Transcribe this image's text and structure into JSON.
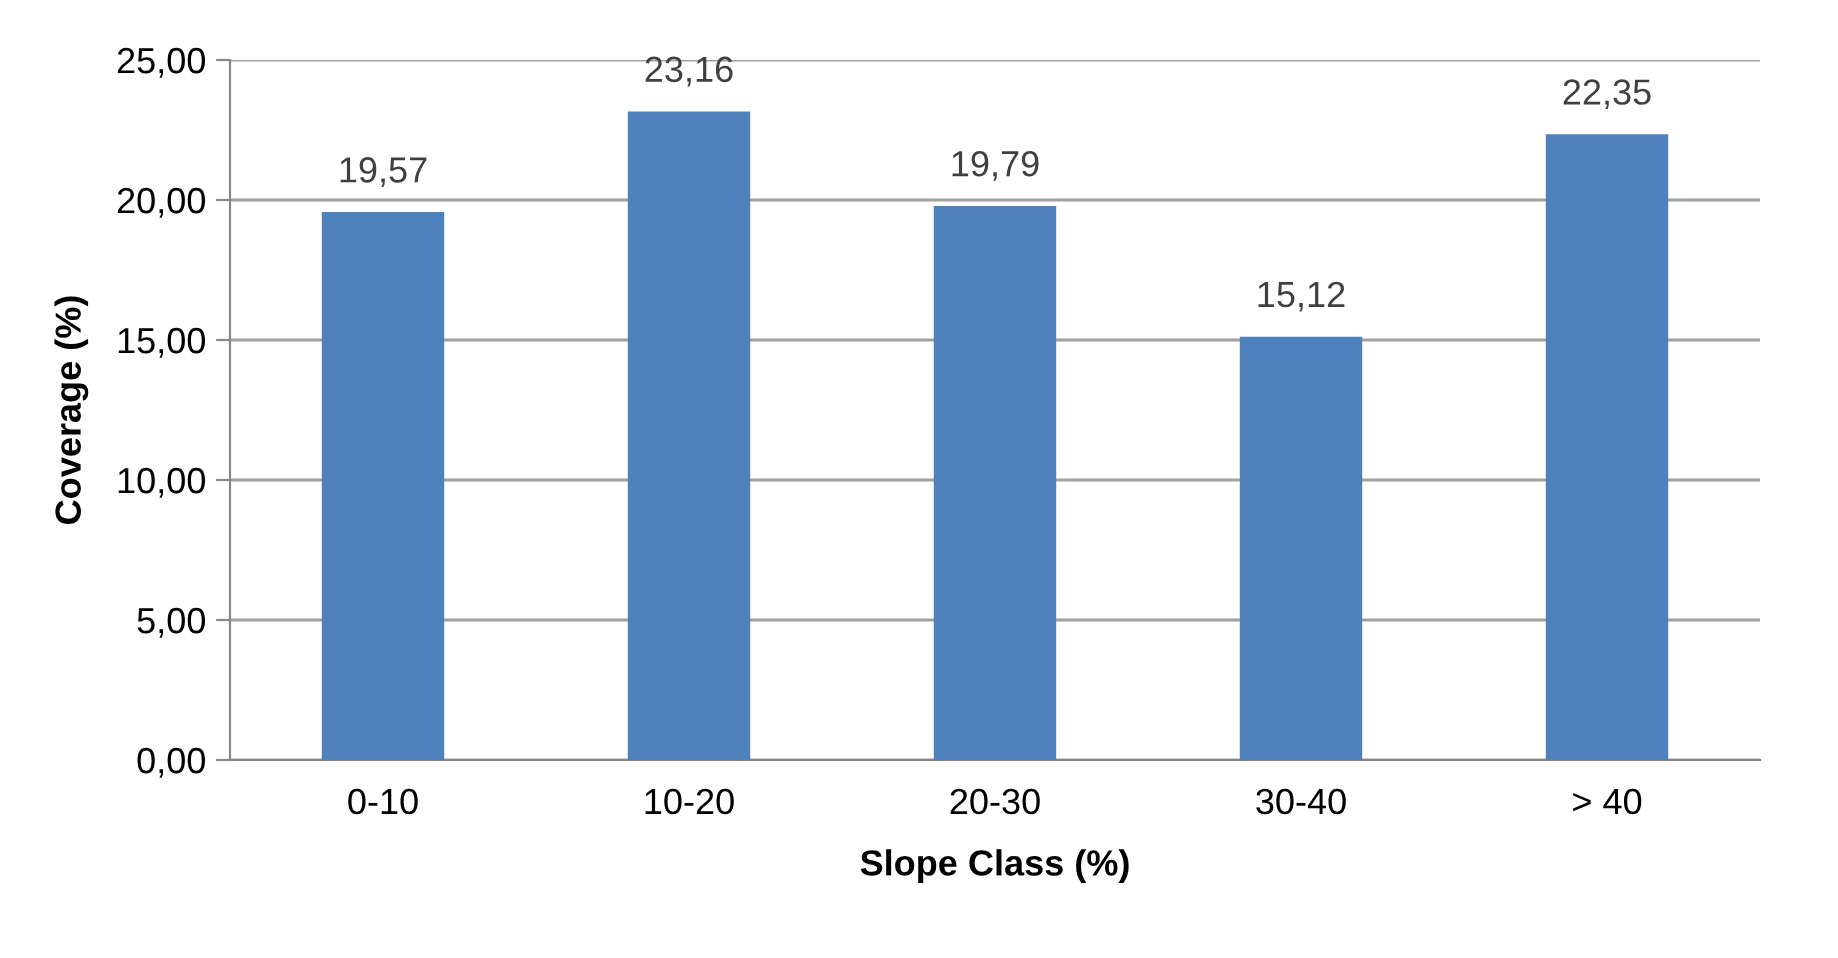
{
  "chart_data": {
    "type": "bar",
    "xlabel": "Slope Class (%)",
    "ylabel": "Coverage (%)",
    "categories": [
      "0-10",
      "10-20",
      "20-30",
      "30-40",
      "> 40"
    ],
    "values": [
      19.57,
      23.16,
      19.79,
      15.12,
      22.35
    ],
    "value_labels": [
      "19,57",
      "23,16",
      "19,79",
      "15,12",
      "22,35"
    ],
    "color": "#4f81bd",
    "ylim": [
      0,
      25
    ],
    "yticks": [
      {
        "value": 0,
        "label": "0,00"
      },
      {
        "value": 5,
        "label": "5,00"
      },
      {
        "value": 10,
        "label": "10,00"
      },
      {
        "value": 15,
        "label": "15,00"
      },
      {
        "value": 20,
        "label": "20,00"
      },
      {
        "value": 25,
        "label": "25,00"
      }
    ],
    "grid": "y",
    "legend": false
  }
}
